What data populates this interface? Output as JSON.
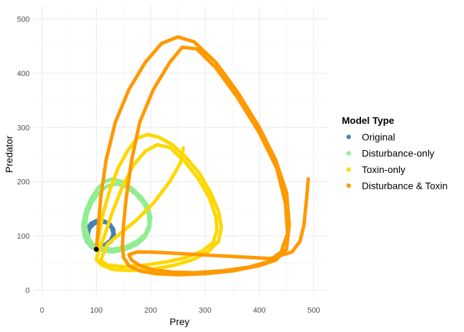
{
  "chart_data": {
    "type": "line",
    "xlabel": "Prey",
    "ylabel": "Predator",
    "xlim": [
      -15,
      525
    ],
    "ylim": [
      -15,
      525
    ],
    "x_ticks": [
      0,
      100,
      200,
      300,
      400,
      500
    ],
    "y_ticks": [
      0,
      100,
      200,
      300,
      400,
      500
    ],
    "x_tick_labels": [
      "0",
      "100",
      "200",
      "300",
      "400",
      "500"
    ],
    "y_tick_labels": [
      "0",
      "100",
      "200",
      "300",
      "400",
      "500"
    ],
    "grid": true,
    "legend": {
      "title": "Model Type",
      "placement": "right",
      "entries": [
        "Original",
        "Disturbance-only",
        "Toxin-only",
        "Disturbance & Toxin"
      ]
    },
    "series": [
      {
        "name": "Original",
        "color": "#4682b4",
        "points": [
          [
            100,
            75
          ],
          [
            90,
            80
          ],
          [
            82,
            90
          ],
          [
            80,
            100
          ],
          [
            82,
            112
          ],
          [
            90,
            123
          ],
          [
            100,
            128
          ],
          [
            113,
            128
          ],
          [
            125,
            122
          ],
          [
            132,
            112
          ],
          [
            133,
            100
          ],
          [
            128,
            90
          ],
          [
            118,
            82
          ],
          [
            108,
            78
          ],
          [
            100,
            77
          ],
          [
            92,
            82
          ],
          [
            86,
            92
          ],
          [
            85,
            103
          ],
          [
            88,
            114
          ],
          [
            96,
            122
          ],
          [
            107,
            126
          ],
          [
            119,
            124
          ],
          [
            128,
            115
          ],
          [
            131,
            103
          ],
          [
            126,
            92
          ],
          [
            116,
            84
          ],
          [
            105,
            80
          ],
          [
            100,
            78
          ]
        ]
      },
      {
        "name": "Disturbance-only",
        "color": "#90ee90",
        "points": [
          [
            100,
            75
          ],
          [
            88,
            82
          ],
          [
            78,
            98
          ],
          [
            75,
            120
          ],
          [
            80,
            145
          ],
          [
            90,
            168
          ],
          [
            102,
            187
          ],
          [
            115,
            200
          ],
          [
            130,
            205
          ],
          [
            148,
            200
          ],
          [
            165,
            188
          ],
          [
            182,
            172
          ],
          [
            195,
            155
          ],
          [
            200,
            135
          ],
          [
            198,
            115
          ],
          [
            190,
            98
          ],
          [
            175,
            84
          ],
          [
            155,
            75
          ],
          [
            130,
            70
          ],
          [
            110,
            73
          ],
          [
            95,
            82
          ],
          [
            85,
            98
          ],
          [
            80,
            118
          ],
          [
            83,
            140
          ],
          [
            92,
            162
          ],
          [
            105,
            180
          ],
          [
            120,
            192
          ],
          [
            138,
            196
          ],
          [
            155,
            190
          ],
          [
            172,
            177
          ],
          [
            187,
            160
          ],
          [
            196,
            140
          ],
          [
            197,
            120
          ],
          [
            190,
            103
          ],
          [
            175,
            90
          ],
          [
            155,
            80
          ],
          [
            130,
            75
          ],
          [
            110,
            78
          ],
          [
            100,
            85
          ]
        ]
      },
      {
        "name": "Toxin-only",
        "color": "#ffd700",
        "points": [
          [
            100,
            75
          ],
          [
            105,
            100
          ],
          [
            112,
            140
          ],
          [
            125,
            185
          ],
          [
            140,
            225
          ],
          [
            158,
            258
          ],
          [
            175,
            280
          ],
          [
            195,
            287
          ],
          [
            215,
            282
          ],
          [
            240,
            268
          ],
          [
            265,
            245
          ],
          [
            290,
            215
          ],
          [
            310,
            180
          ],
          [
            325,
            145
          ],
          [
            330,
            115
          ],
          [
            325,
            90
          ],
          [
            305,
            70
          ],
          [
            275,
            55
          ],
          [
            240,
            45
          ],
          [
            200,
            38
          ],
          [
            160,
            36
          ],
          [
            130,
            38
          ],
          [
            110,
            46
          ],
          [
            100,
            56
          ],
          [
            104,
            72
          ],
          [
            115,
            100
          ],
          [
            130,
            145
          ],
          [
            148,
            190
          ],
          [
            168,
            230
          ],
          [
            190,
            256
          ],
          [
            212,
            268
          ],
          [
            235,
            263
          ],
          [
            262,
            238
          ],
          [
            288,
            205
          ],
          [
            308,
            170
          ],
          [
            320,
            135
          ],
          [
            322,
            110
          ],
          [
            315,
            88
          ],
          [
            295,
            72
          ],
          [
            265,
            60
          ],
          [
            230,
            52
          ],
          [
            190,
            46
          ],
          [
            150,
            43
          ],
          [
            120,
            46
          ],
          [
            108,
            55
          ],
          [
            120,
            84
          ],
          [
            145,
            105
          ],
          [
            175,
            130
          ],
          [
            205,
            160
          ],
          [
            235,
            200
          ],
          [
            255,
            235
          ],
          [
            260,
            262
          ]
        ]
      },
      {
        "name": "Disturbance & Toxin",
        "color": "#ff9900",
        "points": [
          [
            100,
            75
          ],
          [
            103,
            110
          ],
          [
            108,
            170
          ],
          [
            118,
            240
          ],
          [
            135,
            310
          ],
          [
            160,
            370
          ],
          [
            190,
            420
          ],
          [
            220,
            455
          ],
          [
            250,
            467
          ],
          [
            280,
            458
          ],
          [
            320,
            420
          ],
          [
            360,
            365
          ],
          [
            400,
            300
          ],
          [
            430,
            240
          ],
          [
            450,
            180
          ],
          [
            455,
            120
          ],
          [
            450,
            75
          ],
          [
            430,
            55
          ],
          [
            400,
            45
          ],
          [
            350,
            35
          ],
          [
            300,
            30
          ],
          [
            250,
            28
          ],
          [
            210,
            30
          ],
          [
            180,
            35
          ],
          [
            160,
            45
          ],
          [
            150,
            60
          ],
          [
            148,
            80
          ],
          [
            150,
            120
          ],
          [
            155,
            170
          ],
          [
            165,
            240
          ],
          [
            180,
            310
          ],
          [
            205,
            370
          ],
          [
            235,
            420
          ],
          [
            258,
            448
          ],
          [
            285,
            445
          ],
          [
            320,
            410
          ],
          [
            360,
            355
          ],
          [
            400,
            290
          ],
          [
            432,
            225
          ],
          [
            448,
            160
          ],
          [
            452,
            105
          ],
          [
            440,
            70
          ],
          [
            415,
            52
          ],
          [
            380,
            42
          ],
          [
            330,
            35
          ],
          [
            280,
            32
          ],
          [
            240,
            33
          ],
          [
            205,
            37
          ],
          [
            180,
            45
          ],
          [
            165,
            55
          ],
          [
            160,
            65
          ],
          [
            175,
            70
          ],
          [
            200,
            70
          ],
          [
            240,
            68
          ],
          [
            290,
            65
          ],
          [
            350,
            62
          ],
          [
            420,
            58
          ],
          [
            460,
            70
          ],
          [
            475,
            90
          ],
          [
            482,
            120
          ],
          [
            487,
            170
          ],
          [
            490,
            205
          ]
        ]
      }
    ],
    "markers": [
      {
        "x": 100,
        "y": 75,
        "color": "#000000"
      }
    ]
  }
}
